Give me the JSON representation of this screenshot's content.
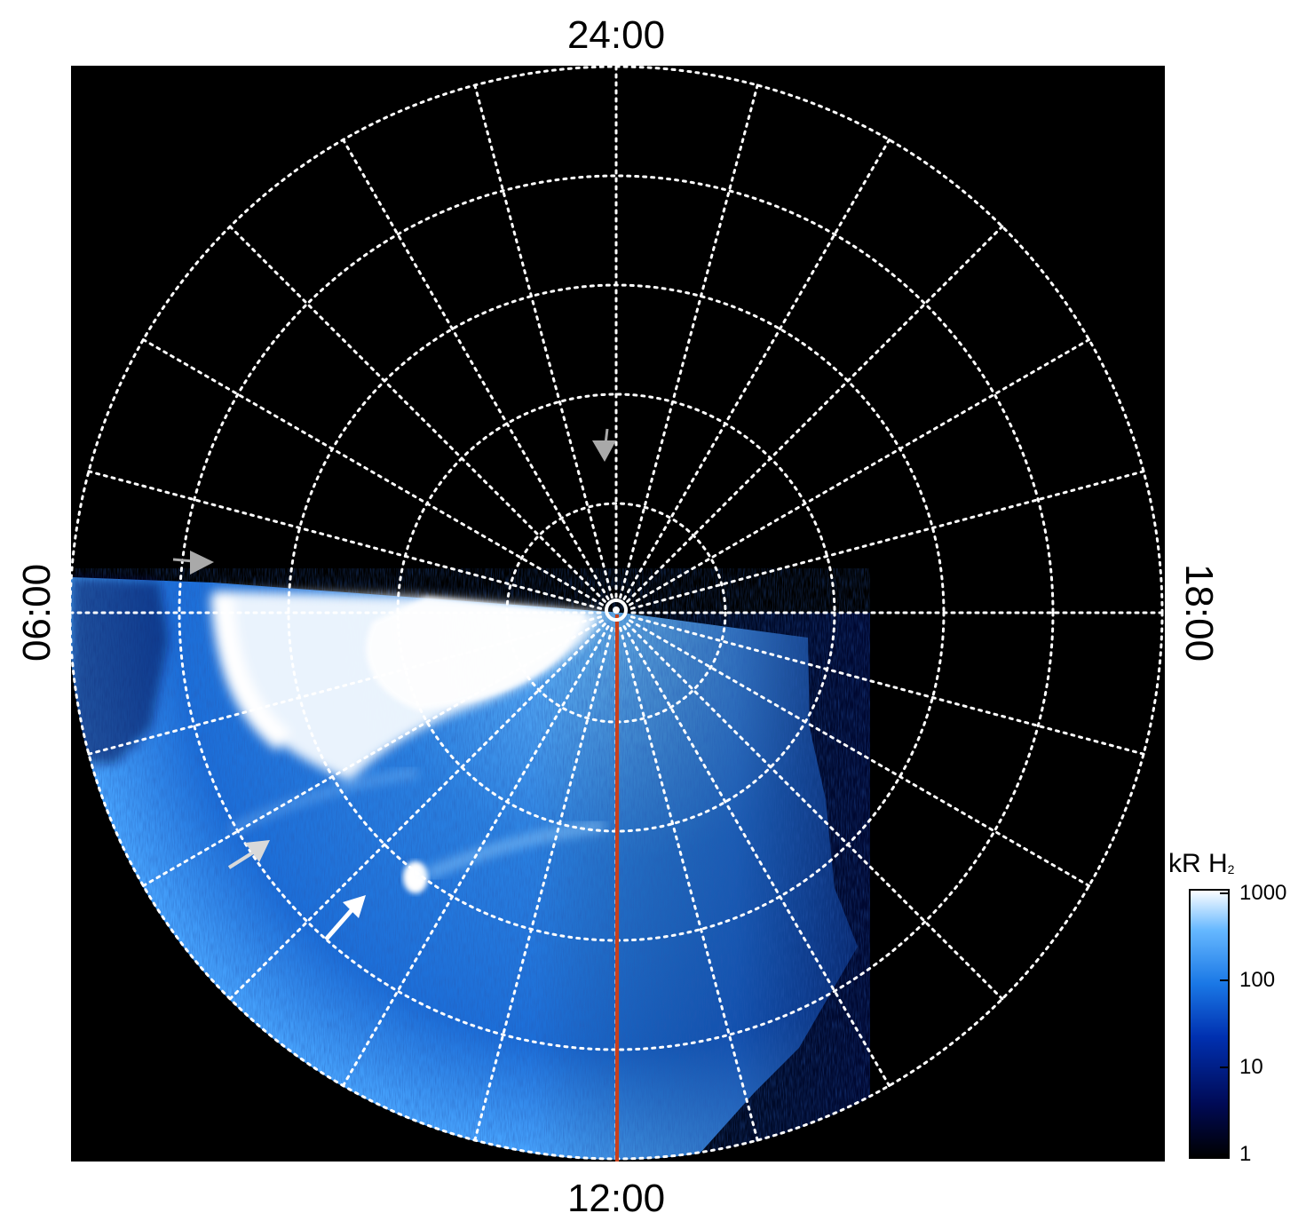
{
  "local_time_labels": {
    "top": "24:00",
    "bottom": "12:00",
    "left": "06:00",
    "right": "18:00"
  },
  "colorbar": {
    "unit": "kR H",
    "unit_subscript": "2",
    "scale": "log",
    "ticks": [
      {
        "label": "1000",
        "value": 1000
      },
      {
        "label": "100",
        "value": 100
      },
      {
        "label": "10",
        "value": 10
      },
      {
        "label": "1",
        "value": 1
      }
    ],
    "colors": [
      "#000000",
      "#000a55",
      "#0030b0",
      "#1a78e6",
      "#66b8ff",
      "#ffffff"
    ]
  },
  "colors": {
    "background": "#000000",
    "grid": "#ffffff",
    "meridian_line": "#c8401c",
    "arrow_white": "#ffffff",
    "arrow_grey": "#a9a9a9"
  },
  "arrows": [
    {
      "name": "arrow-midnight",
      "color": "grey"
    },
    {
      "name": "arrow-dawn",
      "color": "grey"
    },
    {
      "name": "arrow-morning",
      "color": "light-grey"
    },
    {
      "name": "arrow-spot",
      "color": "white"
    }
  ]
}
